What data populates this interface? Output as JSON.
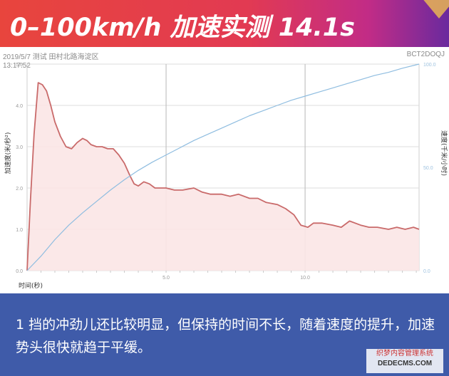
{
  "header": {
    "title": "0–100km/h 加速实测 14.1s"
  },
  "meta": {
    "date_location": "2019/5/7 测试 田村北路海淀区",
    "time": "13:17:52",
    "code": "BCT2DOQJ"
  },
  "chart_data": {
    "type": "line",
    "xlabel": "时间(秒)",
    "ylabel_left": "加速度(米/秒²)",
    "ylabel_right": "速度(千米/小时)",
    "xlim": [
      0,
      14.1
    ],
    "ylim_left": [
      0,
      5
    ],
    "ylim_right": [
      0,
      100
    ],
    "x_ticks": [
      "5.0",
      "10.0"
    ],
    "y_ticks_left": [
      "0.0",
      "1.0",
      "2.0",
      "3.0",
      "4.0",
      "5.0"
    ],
    "y_ticks_right": [
      "0.0",
      "50.0",
      "100.0"
    ],
    "grid": true,
    "series": [
      {
        "axis": "left",
        "color": "#c96a6a",
        "fill": "#fbe5e5",
        "x": [
          0.0,
          0.12,
          0.25,
          0.4,
          0.55,
          0.7,
          0.85,
          1.0,
          1.2,
          1.4,
          1.6,
          1.8,
          2.0,
          2.15,
          2.3,
          2.5,
          2.7,
          2.9,
          3.1,
          3.3,
          3.5,
          3.7,
          3.85,
          4.0,
          4.2,
          4.4,
          4.6,
          4.8,
          5.0,
          5.3,
          5.6,
          6.0,
          6.3,
          6.6,
          7.0,
          7.3,
          7.6,
          8.0,
          8.3,
          8.6,
          9.0,
          9.3,
          9.6,
          9.85,
          10.1,
          10.3,
          10.6,
          11.0,
          11.3,
          11.6,
          12.0,
          12.3,
          12.6,
          13.0,
          13.3,
          13.6,
          13.9,
          14.1
        ],
        "values": [
          0.0,
          1.7,
          3.3,
          4.55,
          4.5,
          4.35,
          4.0,
          3.6,
          3.25,
          3.0,
          2.95,
          3.1,
          3.2,
          3.15,
          3.05,
          3.0,
          3.0,
          2.95,
          2.95,
          2.8,
          2.6,
          2.3,
          2.1,
          2.05,
          2.15,
          2.1,
          2.0,
          2.0,
          2.0,
          1.95,
          1.95,
          2.0,
          1.9,
          1.85,
          1.85,
          1.8,
          1.85,
          1.75,
          1.75,
          1.65,
          1.6,
          1.5,
          1.35,
          1.1,
          1.05,
          1.15,
          1.15,
          1.1,
          1.05,
          1.2,
          1.1,
          1.05,
          1.05,
          1.0,
          1.05,
          1.0,
          1.05,
          1.0
        ]
      },
      {
        "axis": "right",
        "color": "#8fbde0",
        "x": [
          0.0,
          0.5,
          1.0,
          1.5,
          2.0,
          2.5,
          3.0,
          3.5,
          4.0,
          4.5,
          5.0,
          5.5,
          6.0,
          6.5,
          7.0,
          7.5,
          8.0,
          8.5,
          9.0,
          9.5,
          10.0,
          10.5,
          11.0,
          11.5,
          12.0,
          12.5,
          13.0,
          13.5,
          14.1
        ],
        "values": [
          0.0,
          7.0,
          15.0,
          22.0,
          28.0,
          33.5,
          39.0,
          44.0,
          48.5,
          52.5,
          56.0,
          59.5,
          63.0,
          66.0,
          69.0,
          72.0,
          75.0,
          77.5,
          80.0,
          82.5,
          84.5,
          86.5,
          88.5,
          90.5,
          92.5,
          94.5,
          96.0,
          98.0,
          100.0
        ]
      }
    ]
  },
  "caption": {
    "text": "1 挡的冲劲儿还比较明显，但保持的时间不长，随着速度的提升，加速势头很快就趋于平缓。"
  },
  "watermark": {
    "line1": "织梦内容管理系统",
    "line2": "DEDECMS.COM"
  }
}
